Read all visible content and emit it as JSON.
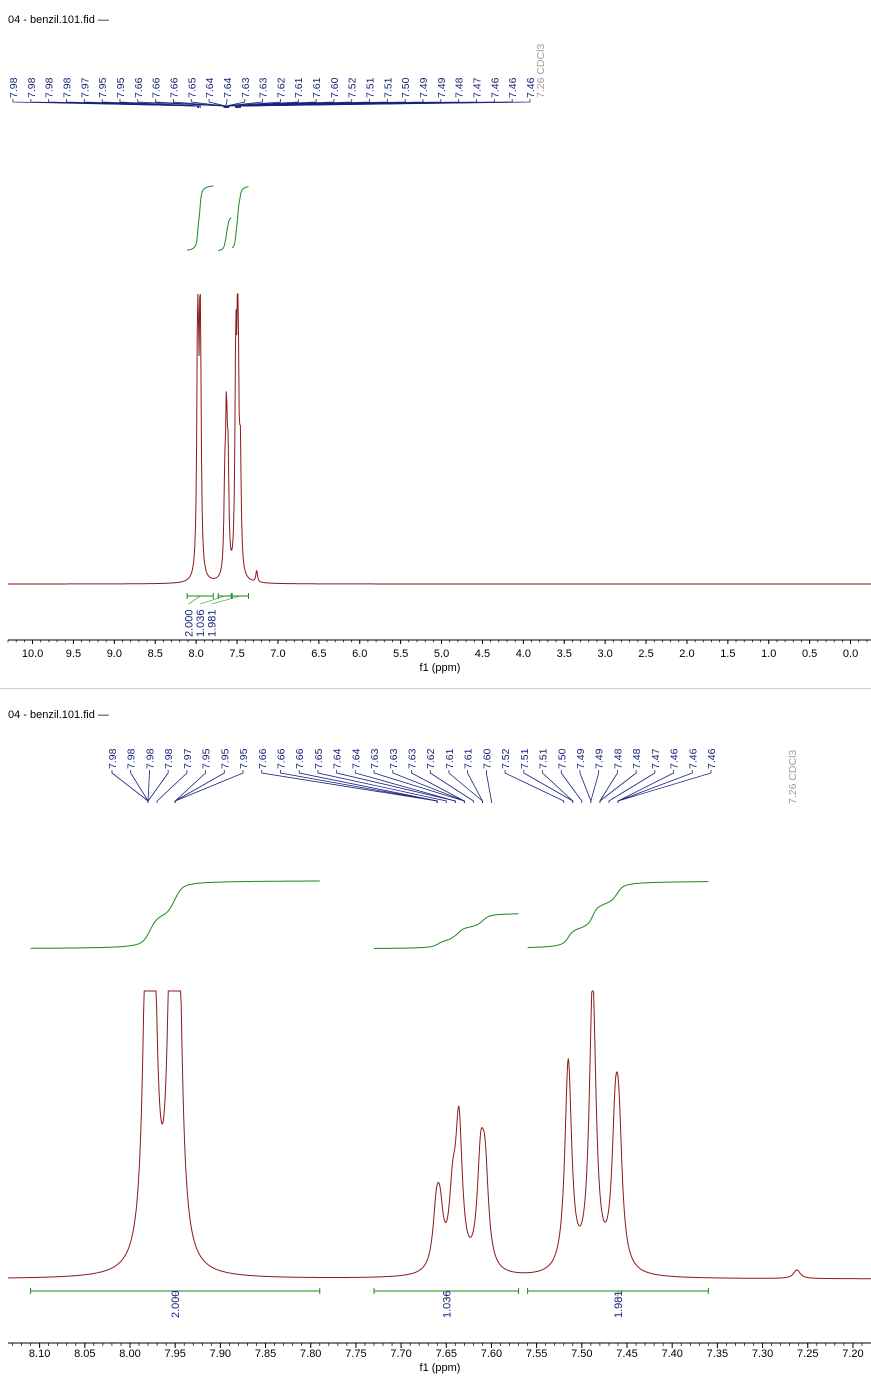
{
  "colors": {
    "spectrum": "#8b1a1a",
    "integral": "#1a8a1a",
    "peak_label": "#1a237e",
    "solvent_label": "#9e9e9e",
    "axis": "#000000"
  },
  "chart_data": [
    {
      "type": "line",
      "title": "04 - benzil.101.fid —",
      "xlabel": "f1 (ppm)",
      "ylabel": "",
      "xlim": [
        10.3,
        -0.25
      ],
      "x_reversed": true,
      "xticks": [
        "10.0",
        "9.5",
        "9.0",
        "8.5",
        "8.0",
        "7.5",
        "7.0",
        "6.5",
        "6.0",
        "5.5",
        "5.0",
        "4.5",
        "4.0",
        "3.5",
        "3.0",
        "2.5",
        "2.0",
        "1.5",
        "1.0",
        "0.5",
        "0.0"
      ],
      "grid": false,
      "peak_labels": [
        "7.98",
        "7.98",
        "7.98",
        "7.98",
        "7.97",
        "7.95",
        "7.95",
        "7.66",
        "7.66",
        "7.66",
        "7.65",
        "7.64",
        "7.64",
        "7.63",
        "7.63",
        "7.62",
        "7.61",
        "7.61",
        "7.60",
        "7.52",
        "7.51",
        "7.51",
        "7.50",
        "7.49",
        "7.49",
        "7.48",
        "7.47",
        "7.46",
        "7.46",
        "7.46"
      ],
      "solvent_label": "7.26 CDCl3",
      "integrals": [
        {
          "from": 8.11,
          "to": 7.79,
          "value": "2.000"
        },
        {
          "from": 7.73,
          "to": 7.57,
          "value": "1.036"
        },
        {
          "from": 7.56,
          "to": 7.36,
          "value": "1.981"
        }
      ],
      "peaks": [
        {
          "ppm": 7.98,
          "height": 1.0
        },
        {
          "ppm": 7.95,
          "height": 1.0
        },
        {
          "ppm": 7.65,
          "height": 0.27
        },
        {
          "ppm": 7.63,
          "height": 0.5
        },
        {
          "ppm": 7.61,
          "height": 0.35
        },
        {
          "ppm": 7.515,
          "height": 0.73
        },
        {
          "ppm": 7.49,
          "height": 1.0
        },
        {
          "ppm": 7.46,
          "height": 0.38
        },
        {
          "ppm": 7.26,
          "height": 0.04
        }
      ]
    },
    {
      "type": "line",
      "title": "04 - benzil.101.fid —",
      "xlabel": "f1 (ppm)",
      "ylabel": "",
      "xlim": [
        8.135,
        7.18
      ],
      "x_reversed": true,
      "xticks": [
        "8.10",
        "8.05",
        "8.00",
        "7.95",
        "7.90",
        "7.85",
        "7.80",
        "7.75",
        "7.70",
        "7.65",
        "7.60",
        "7.55",
        "7.50",
        "7.45",
        "7.40",
        "7.35",
        "7.30",
        "7.25",
        "7.20"
      ],
      "grid": false,
      "peak_labels": [
        "7.98",
        "7.98",
        "7.98",
        "7.98",
        "7.97",
        "7.95",
        "7.95",
        "7.95",
        "7.66",
        "7.66",
        "7.66",
        "7.65",
        "7.64",
        "7.64",
        "7.63",
        "7.63",
        "7.63",
        "7.62",
        "7.61",
        "7.61",
        "7.60",
        "7.52",
        "7.51",
        "7.51",
        "7.50",
        "7.49",
        "7.49",
        "7.48",
        "7.48",
        "7.47",
        "7.46",
        "7.46",
        "7.46"
      ],
      "solvent_label": "7.26 CDCl3",
      "integrals": [
        {
          "from": 8.11,
          "to": 7.79,
          "value": "2.000"
        },
        {
          "from": 7.73,
          "to": 7.57,
          "value": "1.036"
        },
        {
          "from": 7.56,
          "to": 7.36,
          "value": "1.981"
        }
      ],
      "peaks": [
        {
          "ppm": 7.982,
          "height": 0.74
        },
        {
          "ppm": 7.978,
          "height": 0.84
        },
        {
          "ppm": 7.974,
          "height": 0.78
        },
        {
          "ppm": 7.954,
          "height": 1.0
        },
        {
          "ppm": 7.95,
          "height": 0.82
        },
        {
          "ppm": 7.946,
          "height": 0.68
        },
        {
          "ppm": 7.661,
          "height": 0.18
        },
        {
          "ppm": 7.657,
          "height": 0.17
        },
        {
          "ppm": 7.643,
          "height": 0.22
        },
        {
          "ppm": 7.636,
          "height": 0.5
        },
        {
          "ppm": 7.612,
          "height": 0.34
        },
        {
          "ppm": 7.607,
          "height": 0.31
        },
        {
          "ppm": 7.515,
          "height": 0.73
        },
        {
          "ppm": 7.488,
          "height": 1.0
        },
        {
          "ppm": 7.463,
          "height": 0.42
        },
        {
          "ppm": 7.459,
          "height": 0.4
        },
        {
          "ppm": 7.262,
          "height": 0.03
        }
      ]
    }
  ]
}
